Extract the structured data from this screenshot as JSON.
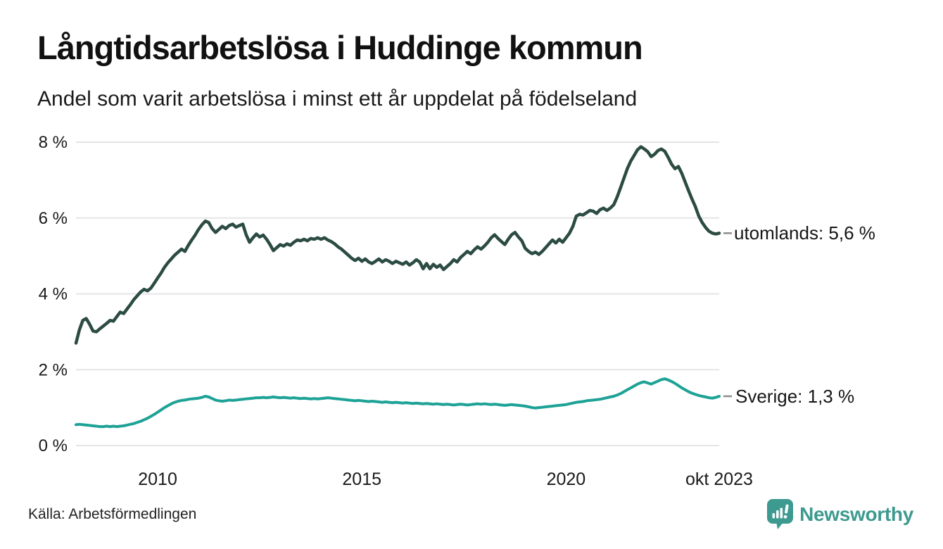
{
  "header": {
    "title": "Långtidsarbetslösa i Huddinge kommun",
    "subtitle": "Andel som varit arbetslösa i minst ett år uppdelat på födelseland"
  },
  "footer": {
    "source": "Källa: Arbetsförmedlingen",
    "brand": "Newsworthy"
  },
  "colors": {
    "utomlands": "#2b4b43",
    "sverige": "#1ea296",
    "grid": "#e5e5e8",
    "label_dash": "#8c8c8c",
    "text": "#1a1a1a",
    "brand": "#3d9a90"
  },
  "chart_data": {
    "type": "line",
    "title": "Långtidsarbetslösa i Huddinge kommun",
    "subtitle": "Andel som varit arbetslösa i minst ett år uppdelat på födelseland",
    "unit": "%",
    "grid": "horizontal-only",
    "legend_position": "line-end-right",
    "xlim": [
      2008.0,
      2023.75
    ],
    "ylim": [
      0,
      8
    ],
    "x_start_year": 2008,
    "points_per_year": 12,
    "x_ticks": [
      {
        "label": "2010",
        "year": 2010
      },
      {
        "label": "2015",
        "year": 2015
      },
      {
        "label": "2020",
        "year": 2020
      },
      {
        "label": "okt 2023",
        "year": 2023.75
      }
    ],
    "y_ticks": [
      {
        "label": "8 %",
        "value": 8
      },
      {
        "label": "6 %",
        "value": 6
      },
      {
        "label": "4 %",
        "value": 4
      },
      {
        "label": "2 %",
        "value": 2
      },
      {
        "label": "0 %",
        "value": 0
      }
    ],
    "series": [
      {
        "name": "utomlands",
        "end_label": "utomlands: 5,6 %",
        "last_value": 5.6,
        "color_key": "utomlands",
        "stroke_width": 4.5,
        "values": [
          2.7,
          3.05,
          3.3,
          3.35,
          3.2,
          3.02,
          3.0,
          3.08,
          3.15,
          3.22,
          3.3,
          3.28,
          3.4,
          3.52,
          3.48,
          3.6,
          3.72,
          3.85,
          3.95,
          4.05,
          4.12,
          4.08,
          4.15,
          4.28,
          4.42,
          4.55,
          4.7,
          4.82,
          4.92,
          5.02,
          5.1,
          5.18,
          5.12,
          5.28,
          5.42,
          5.55,
          5.7,
          5.82,
          5.92,
          5.88,
          5.72,
          5.62,
          5.7,
          5.78,
          5.72,
          5.8,
          5.84,
          5.76,
          5.8,
          5.84,
          5.56,
          5.36,
          5.48,
          5.58,
          5.5,
          5.55,
          5.44,
          5.3,
          5.14,
          5.22,
          5.3,
          5.26,
          5.32,
          5.28,
          5.36,
          5.42,
          5.4,
          5.44,
          5.4,
          5.46,
          5.44,
          5.48,
          5.44,
          5.48,
          5.42,
          5.38,
          5.32,
          5.24,
          5.18,
          5.1,
          5.02,
          4.94,
          4.88,
          4.94,
          4.86,
          4.92,
          4.84,
          4.8,
          4.86,
          4.92,
          4.84,
          4.9,
          4.86,
          4.8,
          4.86,
          4.82,
          4.78,
          4.84,
          4.76,
          4.82,
          4.9,
          4.84,
          4.66,
          4.8,
          4.66,
          4.78,
          4.7,
          4.76,
          4.64,
          4.72,
          4.8,
          4.9,
          4.84,
          4.96,
          5.04,
          5.12,
          5.06,
          5.16,
          5.24,
          5.18,
          5.26,
          5.36,
          5.48,
          5.56,
          5.46,
          5.38,
          5.3,
          5.44,
          5.56,
          5.62,
          5.5,
          5.4,
          5.2,
          5.12,
          5.06,
          5.1,
          5.04,
          5.12,
          5.22,
          5.32,
          5.42,
          5.34,
          5.44,
          5.36,
          5.48,
          5.6,
          5.78,
          6.05,
          6.1,
          6.08,
          6.14,
          6.2,
          6.18,
          6.12,
          6.22,
          6.26,
          6.2,
          6.26,
          6.35,
          6.55,
          6.8,
          7.05,
          7.3,
          7.5,
          7.65,
          7.8,
          7.88,
          7.82,
          7.75,
          7.62,
          7.68,
          7.78,
          7.82,
          7.76,
          7.6,
          7.42,
          7.3,
          7.36,
          7.18,
          6.95,
          6.72,
          6.5,
          6.3,
          6.05,
          5.88,
          5.75,
          5.65,
          5.6,
          5.58,
          5.6
        ]
      },
      {
        "name": "Sverige",
        "end_label": "Sverige: 1,3 %",
        "last_value": 1.3,
        "color_key": "sverige",
        "stroke_width": 4,
        "values": [
          0.55,
          0.56,
          0.55,
          0.54,
          0.53,
          0.52,
          0.51,
          0.5,
          0.5,
          0.51,
          0.5,
          0.51,
          0.5,
          0.51,
          0.52,
          0.54,
          0.56,
          0.58,
          0.61,
          0.64,
          0.68,
          0.72,
          0.77,
          0.82,
          0.88,
          0.94,
          1.0,
          1.05,
          1.1,
          1.14,
          1.17,
          1.19,
          1.2,
          1.22,
          1.23,
          1.24,
          1.25,
          1.27,
          1.3,
          1.28,
          1.24,
          1.2,
          1.18,
          1.17,
          1.18,
          1.2,
          1.19,
          1.2,
          1.21,
          1.22,
          1.23,
          1.24,
          1.25,
          1.26,
          1.26,
          1.27,
          1.26,
          1.27,
          1.28,
          1.27,
          1.26,
          1.27,
          1.26,
          1.25,
          1.26,
          1.25,
          1.24,
          1.25,
          1.24,
          1.23,
          1.24,
          1.23,
          1.24,
          1.25,
          1.26,
          1.25,
          1.24,
          1.23,
          1.22,
          1.21,
          1.2,
          1.19,
          1.18,
          1.19,
          1.18,
          1.17,
          1.16,
          1.17,
          1.16,
          1.15,
          1.14,
          1.15,
          1.14,
          1.13,
          1.14,
          1.13,
          1.12,
          1.13,
          1.12,
          1.11,
          1.12,
          1.11,
          1.1,
          1.11,
          1.1,
          1.09,
          1.1,
          1.09,
          1.08,
          1.09,
          1.08,
          1.07,
          1.08,
          1.09,
          1.08,
          1.07,
          1.08,
          1.09,
          1.1,
          1.09,
          1.1,
          1.09,
          1.08,
          1.09,
          1.08,
          1.07,
          1.06,
          1.07,
          1.08,
          1.07,
          1.06,
          1.05,
          1.04,
          1.02,
          1.0,
          0.99,
          1.0,
          1.01,
          1.02,
          1.03,
          1.04,
          1.05,
          1.06,
          1.07,
          1.08,
          1.1,
          1.12,
          1.14,
          1.15,
          1.16,
          1.18,
          1.19,
          1.2,
          1.21,
          1.22,
          1.24,
          1.26,
          1.28,
          1.3,
          1.33,
          1.37,
          1.42,
          1.47,
          1.52,
          1.57,
          1.62,
          1.66,
          1.68,
          1.65,
          1.62,
          1.66,
          1.7,
          1.74,
          1.76,
          1.73,
          1.69,
          1.64,
          1.58,
          1.52,
          1.47,
          1.42,
          1.38,
          1.35,
          1.32,
          1.3,
          1.28,
          1.26,
          1.25,
          1.27,
          1.3
        ]
      }
    ]
  }
}
